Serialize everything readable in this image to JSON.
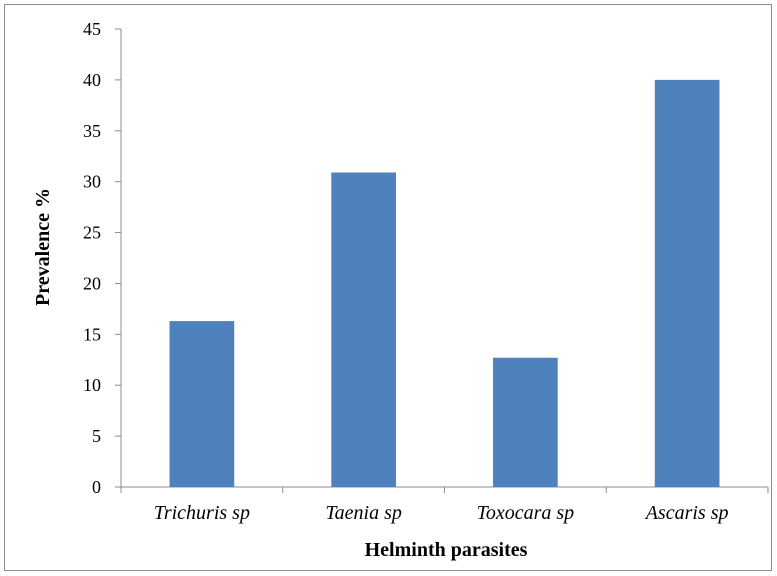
{
  "chart_data": {
    "type": "bar",
    "title": "",
    "xlabel": "Helminth parasites",
    "ylabel": "Prevalence %",
    "categories": [
      "Trichuris sp",
      "Taenia sp",
      "Toxocara sp",
      "Ascaris sp"
    ],
    "values": [
      16.3,
      30.9,
      12.7,
      40.0
    ],
    "ylim": [
      0,
      45
    ],
    "yticks": [
      0,
      5,
      10,
      15,
      20,
      25,
      30,
      35,
      40,
      45
    ],
    "grid": false,
    "legend": "none",
    "colors": {
      "bar": "#4f81bd",
      "axis": "#8c8c8c",
      "frame": "#8c8c8c"
    }
  }
}
